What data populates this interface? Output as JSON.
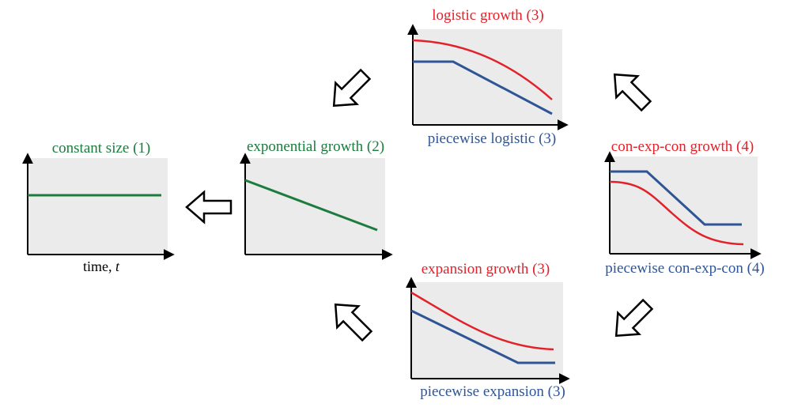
{
  "colors": {
    "red": "#e3212a",
    "blue": "#2f5595",
    "green": "#1b7c3d",
    "panel": "#ebebeb",
    "axis": "#000000"
  },
  "panels": {
    "constant": {
      "title": "constant size (1)",
      "bottom_label_prefix": "time, ",
      "bottom_label_var": "t"
    },
    "exponential": {
      "title": "exponential growth (2)"
    },
    "logistic": {
      "title": "logistic growth (3)",
      "bottom_label": "piecewise logistic (3)"
    },
    "conexpcon": {
      "title": "con-exp-con growth (4)",
      "bottom_label": "piecewise con-exp-con (4)"
    },
    "expansion": {
      "title": "expansion growth (3)",
      "bottom_label": "piecewise expansion (3)"
    }
  },
  "arrows": [
    {
      "name": "arrow-exponential-to-constant",
      "direction": "left"
    },
    {
      "name": "arrow-logistic-to-exponential",
      "direction": "down-left"
    },
    {
      "name": "arrow-expansion-to-exponential",
      "direction": "up-left"
    },
    {
      "name": "arrow-conexpcon-to-logistic",
      "direction": "up-left"
    },
    {
      "name": "arrow-conexpcon-to-expansion",
      "direction": "down-left"
    }
  ]
}
